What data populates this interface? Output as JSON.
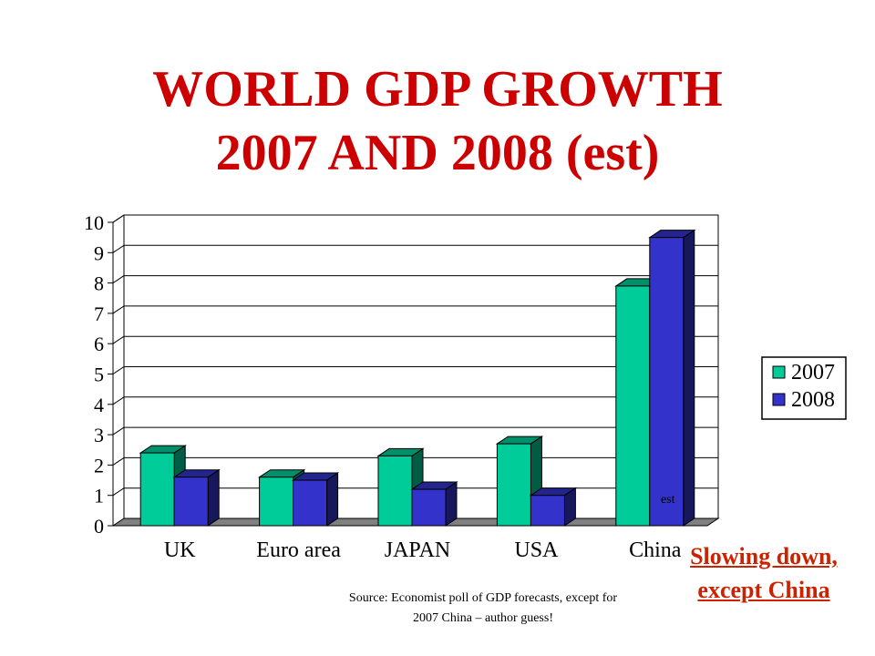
{
  "title_line1": "WORLD GDP GROWTH",
  "title_line2": "2007 AND 2008 (est)",
  "note": "Slowing down, except China",
  "source": "Source: Economist poll of GDP forecasts, except for 2007 China – author guess!",
  "colors": {
    "series_2007": "#00cc99",
    "series_2008": "#3333cc",
    "title": "#cc0000",
    "note": "#cc2200"
  },
  "chart_data": {
    "type": "bar",
    "style": "3d-clustered",
    "categories": [
      "UK",
      "Euro area",
      "JAPAN",
      "USA",
      "China"
    ],
    "series": [
      {
        "name": "2007",
        "values": [
          2.4,
          1.6,
          2.3,
          2.7,
          7.9
        ],
        "color": "#00cc99"
      },
      {
        "name": "2008",
        "values": [
          1.6,
          1.5,
          1.2,
          1.0,
          9.5
        ],
        "color": "#3333cc"
      }
    ],
    "ylim": [
      0,
      10
    ],
    "yticks": [
      0,
      1,
      2,
      3,
      4,
      5,
      6,
      7,
      8,
      9,
      10
    ],
    "grid": true,
    "legend": "right",
    "annotations": [
      {
        "text": "est",
        "category": "China"
      }
    ]
  }
}
